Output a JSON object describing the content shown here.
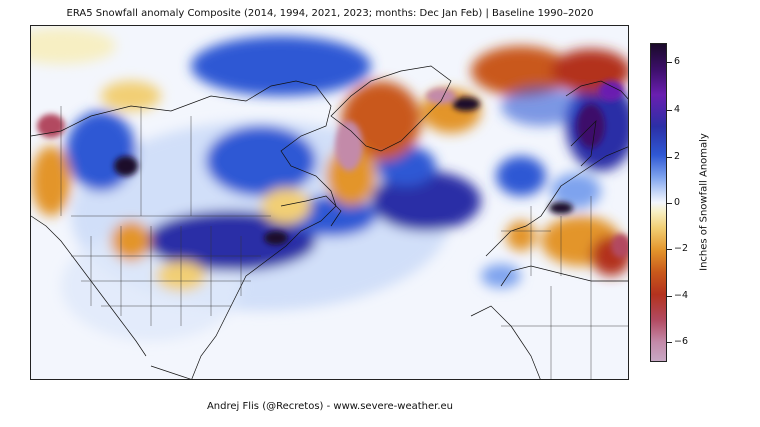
{
  "title": "ERA5 Snowfall anomaly Composite (2014, 1994, 2021, 2023; months: Dec Jan Feb) | Baseline 1990–2020",
  "colorbar": {
    "label": "Inches of Snowfall Anomaly",
    "ticks": [
      "6",
      "4",
      "2",
      "0",
      "−2",
      "−4",
      "−6"
    ],
    "range": [
      -7,
      7
    ],
    "colors": [
      "#1a0a2a",
      "#6a1fb0",
      "#2f58d4",
      "#f3f6fd",
      "#f2cf74",
      "#c9591b",
      "#b24a61",
      "#c8a8c4"
    ]
  },
  "map": {
    "region": "North America, North Atlantic, Greenland, Europe",
    "palette": {
      "ocean_base": "#f3f6fd",
      "strong_positive": "#2b2fa6",
      "extreme_positive": "#1a0a2a",
      "negative_orange": "#e3952c",
      "negative_red": "#b3321e",
      "extreme_negative": "#c38aa9"
    }
  },
  "credit": "Andrej Flis (@Recretos) - www.severe-weather.eu"
}
